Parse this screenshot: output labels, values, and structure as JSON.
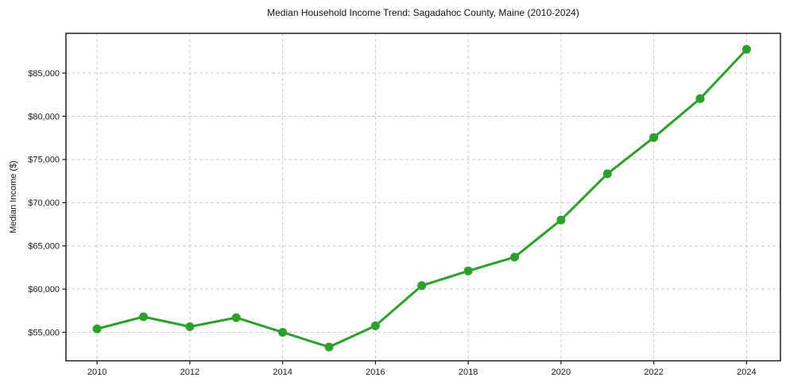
{
  "chart_data": {
    "type": "line",
    "title": "Median Household Income Trend: Sagadahoc County, Maine (2010-2024)",
    "xlabel": "",
    "ylabel": "Median Income ($)",
    "series": [
      {
        "name": "Median Household Income",
        "x": [
          2010,
          2011,
          2012,
          2013,
          2014,
          2015,
          2016,
          2017,
          2018,
          2019,
          2020,
          2021,
          2022,
          2023,
          2024
        ],
        "values": [
          55400,
          56800,
          55650,
          56700,
          55000,
          53300,
          55750,
          60400,
          62100,
          63700,
          68000,
          73350,
          77550,
          82050,
          87750
        ]
      }
    ],
    "x_ticks": [
      2010,
      2012,
      2014,
      2016,
      2018,
      2020,
      2022,
      2024
    ],
    "x_tick_labels": [
      "2010",
      "2012",
      "2014",
      "2016",
      "2018",
      "2020",
      "2022",
      "2024"
    ],
    "y_ticks": [
      55000,
      60000,
      65000,
      70000,
      75000,
      80000,
      85000
    ],
    "y_tick_labels": [
      "$55,000",
      "$60,000",
      "$65,000",
      "$70,000",
      "$75,000",
      "$80,000",
      "$85,000"
    ],
    "xlim": [
      2009.33,
      2024.73
    ],
    "ylim": [
      51700,
      89600
    ],
    "grid": true,
    "grid_style": "dashed",
    "grid_color": "#cccccc",
    "line_color": "#2ca02c",
    "marker": "circle",
    "marker_size": 11,
    "axis_color": "#111111",
    "tick_label_color": "#1a1a1a",
    "legend": false
  }
}
